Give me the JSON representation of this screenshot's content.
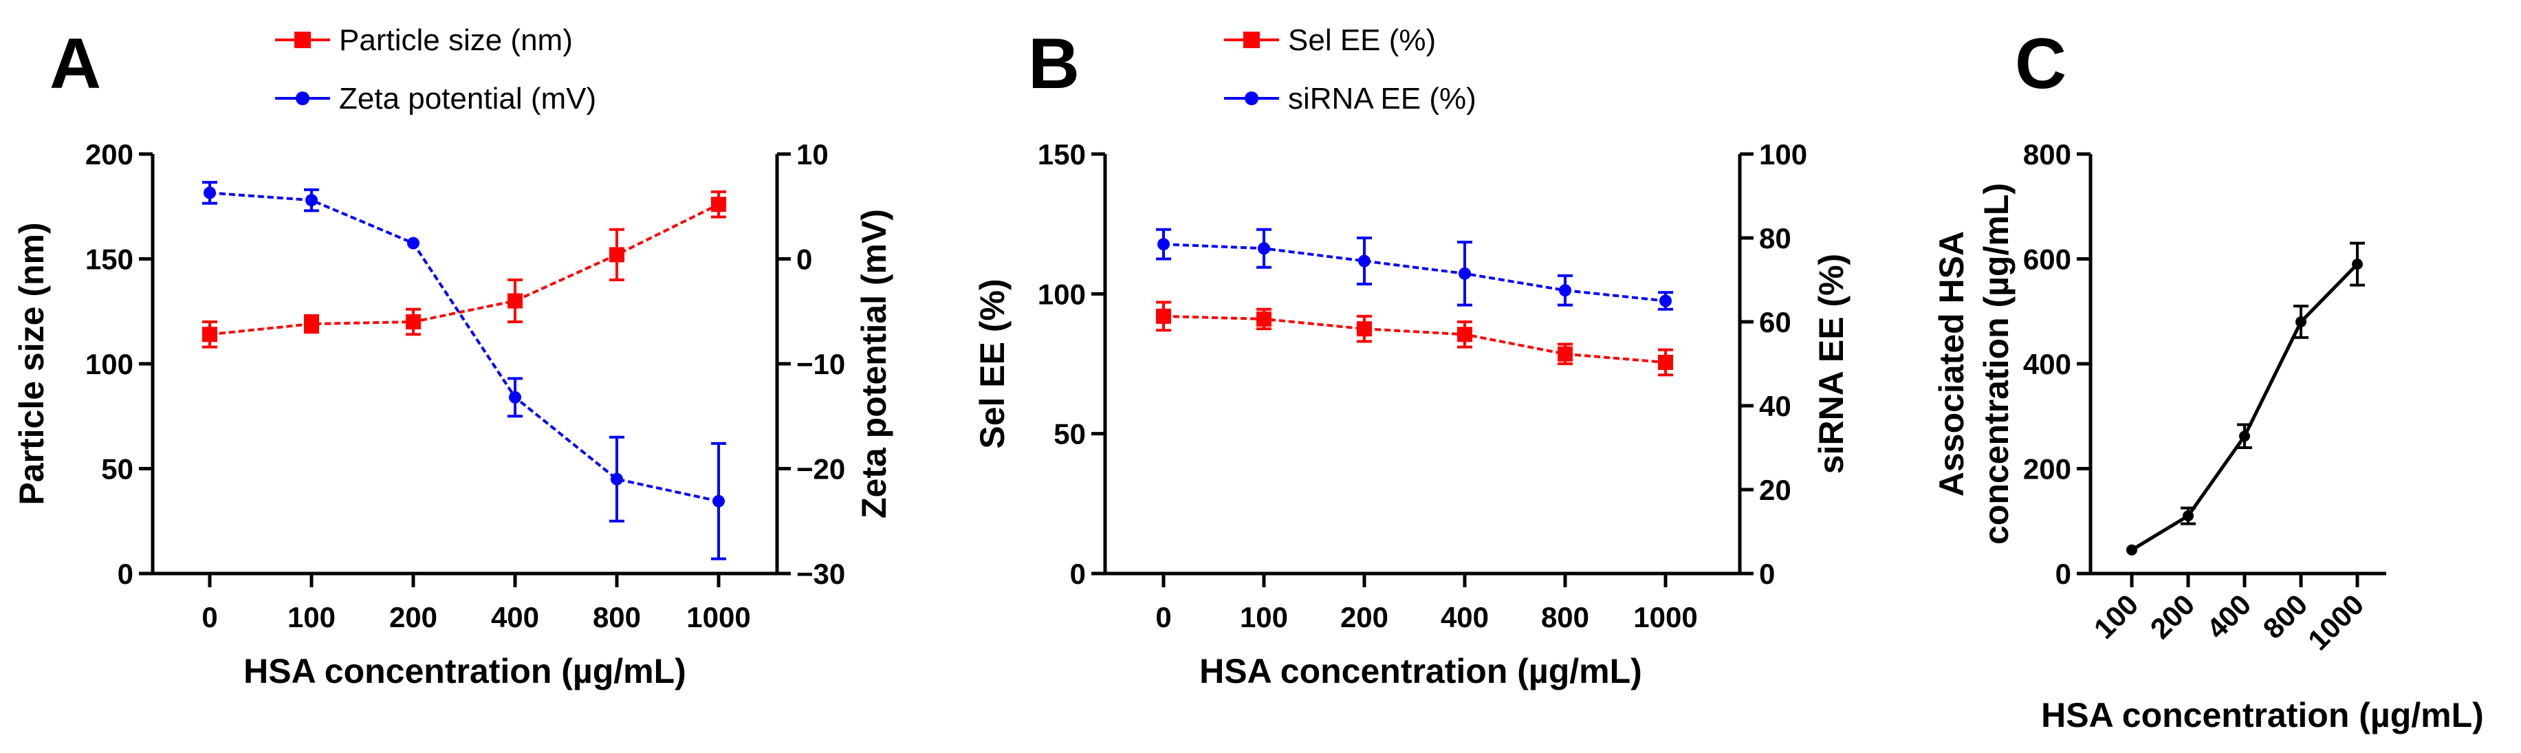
{
  "chart_data": [
    {
      "panel_label": "A",
      "type": "line",
      "categories": [
        "0",
        "100",
        "200",
        "400",
        "800",
        "1000"
      ],
      "xlabel": "HSA concentration (µg/mL)",
      "ylabel": "Particle size (nm)",
      "ylim": [
        0,
        200
      ],
      "yticks": [
        "0",
        "50",
        "100",
        "150",
        "200"
      ],
      "y2label": "Zeta potential (mV)",
      "y2lim": [
        -30,
        10
      ],
      "y2ticks": [
        "-30",
        "-20",
        "-10",
        "0",
        "10"
      ],
      "legend_position": "top",
      "series": [
        {
          "name": "Particle size (nm)",
          "axis": "left",
          "color": "#ff0000",
          "marker": "square",
          "values": [
            114,
            119,
            120,
            130,
            152,
            176
          ],
          "errors": [
            6,
            4,
            6,
            10,
            12,
            6
          ]
        },
        {
          "name": "Zeta potential (mV)",
          "axis": "right",
          "color": "#0000ff",
          "marker": "circle",
          "values": [
            6.3,
            5.6,
            1.5,
            -13.2,
            -21.0,
            -23.1
          ],
          "errors": [
            1,
            1,
            0,
            1.8,
            4,
            5.5
          ]
        }
      ]
    },
    {
      "panel_label": "B",
      "type": "line",
      "categories": [
        "0",
        "100",
        "200",
        "400",
        "800",
        "1000"
      ],
      "xlabel": "HSA concentration (µg/mL)",
      "ylabel": "Sel EE (%)",
      "ylim": [
        0,
        150
      ],
      "yticks": [
        "0",
        "50",
        "100",
        "150"
      ],
      "y2label": "siRNA EE (%)",
      "y2lim": [
        0,
        100
      ],
      "y2ticks": [
        "0",
        "20",
        "40",
        "60",
        "80",
        "100"
      ],
      "legend_position": "top",
      "series": [
        {
          "name": "Sel EE (%)",
          "axis": "left",
          "color": "#ff0000",
          "marker": "square",
          "values": [
            92,
            91,
            87.5,
            85.5,
            78.5,
            75.5
          ],
          "errors": [
            5,
            3.5,
            4.5,
            4.5,
            3.5,
            4.5
          ]
        },
        {
          "name": "siRNA EE (%)",
          "axis": "right",
          "color": "#0000ff",
          "marker": "circle",
          "values": [
            78.5,
            77.5,
            74.5,
            71.5,
            67.5,
            65
          ],
          "errors": [
            3.5,
            4.5,
            5.5,
            7.5,
            3.5,
            2
          ]
        }
      ]
    },
    {
      "panel_label": "C",
      "type": "line",
      "categories": [
        "100",
        "200",
        "400",
        "800",
        "1000"
      ],
      "xlabel": "HSA concentration (µg/mL)",
      "ylabel_lines": [
        "Associated HSA",
        "concentration (µg/mL)"
      ],
      "ylim": [
        0,
        800
      ],
      "yticks": [
        "0",
        "200",
        "400",
        "600",
        "800"
      ],
      "series": [
        {
          "color": "#000000",
          "marker": "circle",
          "values": [
            45,
            110,
            262,
            480,
            590
          ],
          "errors": [
            0,
            15,
            22,
            30,
            40
          ]
        }
      ]
    }
  ]
}
